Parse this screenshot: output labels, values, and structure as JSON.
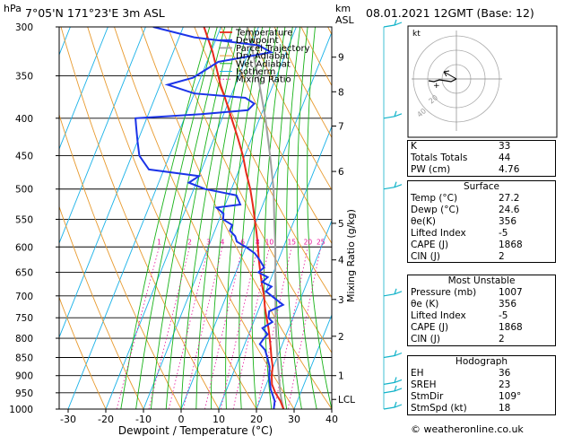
{
  "header": {
    "hpa_label": "hPa",
    "location": "7°05'N  171°23'E  3m  ASL",
    "km_label": "km",
    "asl_label": "ASL",
    "datetime": "08.01.2021  12GMT  (Base: 12)"
  },
  "chart_data": {
    "type": "line",
    "xlabel": "Dewpoint / Temperature (°C)",
    "mixing_ratio_label": "Mixing Ratio (g/kg)",
    "pressure_ticks": [
      300,
      350,
      400,
      450,
      500,
      550,
      600,
      650,
      700,
      750,
      800,
      850,
      900,
      950,
      1000
    ],
    "temp_ticks": [
      -30,
      -20,
      -10,
      0,
      10,
      20,
      30,
      40
    ],
    "xlim": [
      -40,
      40
    ],
    "ylim": [
      1000,
      300
    ],
    "km_ticks": [
      {
        "label": "9",
        "p": 330
      },
      {
        "label": "8",
        "p": 368
      },
      {
        "label": "7",
        "p": 410
      },
      {
        "label": "6",
        "p": 473
      },
      {
        "label": "5",
        "p": 557
      },
      {
        "label": "4",
        "p": 625
      },
      {
        "label": "3",
        "p": 708
      },
      {
        "label": "2",
        "p": 795
      },
      {
        "label": "1",
        "p": 900
      },
      {
        "label": "LCL",
        "p": 970
      }
    ],
    "mixing_ratio_values": [
      "1",
      "2",
      "3",
      "4",
      "6",
      "8",
      "10",
      "15",
      "20",
      "25"
    ],
    "legend": [
      "Temperature",
      "Dewpoint",
      "Parcel Trajectory",
      "Dry Adiabat",
      "Wet Adiabat",
      "Isotherm",
      "Mixing Ratio"
    ],
    "colors": {
      "temperature": "#e8291c",
      "dewpoint": "#1c34e8",
      "parcel": "#a0a0a0",
      "dry_adiabat": "#e89a2e",
      "wet_adiabat": "#18b318",
      "isotherm": "#1ab2e8",
      "mixing_ratio": "#e8119a",
      "wind": "#12b3c9"
    },
    "series": [
      {
        "name": "Temperature",
        "points": [
          [
            1000,
            27.2
          ],
          [
            975,
            25.5
          ],
          [
            950,
            23.3
          ],
          [
            925,
            21.5
          ],
          [
            900,
            20.5
          ],
          [
            875,
            19.8
          ],
          [
            850,
            18.5
          ],
          [
            825,
            17.3
          ],
          [
            800,
            16
          ],
          [
            775,
            14.6
          ],
          [
            750,
            13
          ],
          [
            725,
            11.4
          ],
          [
            700,
            10
          ],
          [
            675,
            8.2
          ],
          [
            650,
            6.5
          ],
          [
            625,
            4.8
          ],
          [
            600,
            3.2
          ],
          [
            575,
            1.4
          ],
          [
            550,
            -0.6
          ],
          [
            525,
            -2.7
          ],
          [
            500,
            -5
          ],
          [
            475,
            -7.8
          ],
          [
            450,
            -10.5
          ],
          [
            425,
            -13.8
          ],
          [
            400,
            -17.5
          ],
          [
            375,
            -21.4
          ],
          [
            360,
            -24
          ],
          [
            350,
            -25.5
          ],
          [
            325,
            -29.5
          ],
          [
            300,
            -34.5
          ]
        ]
      },
      {
        "name": "Dewpoint",
        "points": [
          [
            1000,
            24.6
          ],
          [
            975,
            24
          ],
          [
            950,
            22.4
          ],
          [
            940,
            21.7
          ],
          [
            925,
            21
          ],
          [
            900,
            19.8
          ],
          [
            875,
            19
          ],
          [
            850,
            17.4
          ],
          [
            830,
            16
          ],
          [
            815,
            14
          ],
          [
            800,
            14.5
          ],
          [
            790,
            15
          ],
          [
            775,
            13
          ],
          [
            760,
            15
          ],
          [
            750,
            13.5
          ],
          [
            735,
            13
          ],
          [
            720,
            16
          ],
          [
            710,
            14
          ],
          [
            700,
            12
          ],
          [
            690,
            10
          ],
          [
            680,
            11
          ],
          [
            670,
            8
          ],
          [
            660,
            9
          ],
          [
            650,
            6
          ],
          [
            640,
            7
          ],
          [
            625,
            5
          ],
          [
            612,
            3
          ],
          [
            600,
            0
          ],
          [
            590,
            -3
          ],
          [
            580,
            -4
          ],
          [
            570,
            -6
          ],
          [
            560,
            -6
          ],
          [
            550,
            -9
          ],
          [
            540,
            -9.5
          ],
          [
            530,
            -12
          ],
          [
            525,
            -6
          ],
          [
            510,
            -8
          ],
          [
            500,
            -17
          ],
          [
            490,
            -22
          ],
          [
            480,
            -20
          ],
          [
            470,
            -34
          ],
          [
            460,
            -36
          ],
          [
            450,
            -38
          ],
          [
            440,
            -39
          ],
          [
            430,
            -40
          ],
          [
            420,
            -41
          ],
          [
            410,
            -42
          ],
          [
            400,
            -43
          ],
          [
            395,
            -26
          ],
          [
            390,
            -14
          ],
          [
            382,
            -13
          ],
          [
            375,
            -16
          ],
          [
            370,
            -30
          ],
          [
            360,
            -38
          ],
          [
            352,
            -32
          ],
          [
            345,
            -30
          ],
          [
            335,
            -27
          ],
          [
            325,
            -14
          ],
          [
            318,
            -18
          ],
          [
            310,
            -36
          ],
          [
            300,
            -48
          ]
        ]
      },
      {
        "name": "Parcel Trajectory",
        "points": [
          [
            1000,
            27.2
          ],
          [
            970,
            25.6
          ],
          [
            950,
            24.6
          ],
          [
            900,
            22.4
          ],
          [
            850,
            20.1
          ],
          [
            800,
            17.8
          ],
          [
            750,
            15.4
          ],
          [
            700,
            13
          ],
          [
            650,
            10.5
          ],
          [
            600,
            7.8
          ],
          [
            550,
            4.6
          ],
          [
            500,
            1.2
          ],
          [
            450,
            -3.3
          ],
          [
            400,
            -8.5
          ],
          [
            350,
            -15
          ],
          [
            300,
            -23
          ]
        ]
      }
    ],
    "wind_barbs": [
      {
        "p": 300
      },
      {
        "p": 400
      },
      {
        "p": 500
      },
      {
        "p": 700
      },
      {
        "p": 850
      },
      {
        "p": 925
      },
      {
        "p": 950
      },
      {
        "p": 1000
      }
    ]
  },
  "hodograph": {
    "unit_label": "kt",
    "ring_labels": [
      "20",
      "40"
    ]
  },
  "indices": [
    {
      "label": "K",
      "value": "33"
    },
    {
      "label": "Totals Totals",
      "value": "44"
    },
    {
      "label": "PW (cm)",
      "value": "4.76"
    }
  ],
  "surface": {
    "title": "Surface",
    "rows": [
      {
        "label": "Temp (°C)",
        "value": "27.2"
      },
      {
        "label": "Dewp (°C)",
        "value": "24.6"
      },
      {
        "label": "θe(K)",
        "value": "356"
      },
      {
        "label": "Lifted Index",
        "value": "-5"
      },
      {
        "label": "CAPE (J)",
        "value": "1868"
      },
      {
        "label": "CIN (J)",
        "value": "2"
      }
    ]
  },
  "most_unstable": {
    "title": "Most Unstable",
    "rows": [
      {
        "label": "Pressure (mb)",
        "value": "1007"
      },
      {
        "label": "θe (K)",
        "value": "356"
      },
      {
        "label": "Lifted Index",
        "value": "-5"
      },
      {
        "label": "CAPE (J)",
        "value": "1868"
      },
      {
        "label": "CIN (J)",
        "value": "2"
      }
    ]
  },
  "hodograph_table": {
    "title": "Hodograph",
    "rows": [
      {
        "label": "EH",
        "value": "36"
      },
      {
        "label": "SREH",
        "value": "23"
      },
      {
        "label": "StmDir",
        "value": "109°"
      },
      {
        "label": "StmSpd (kt)",
        "value": "18"
      }
    ]
  },
  "footer": {
    "credit": "© weatheronline.co.uk"
  }
}
